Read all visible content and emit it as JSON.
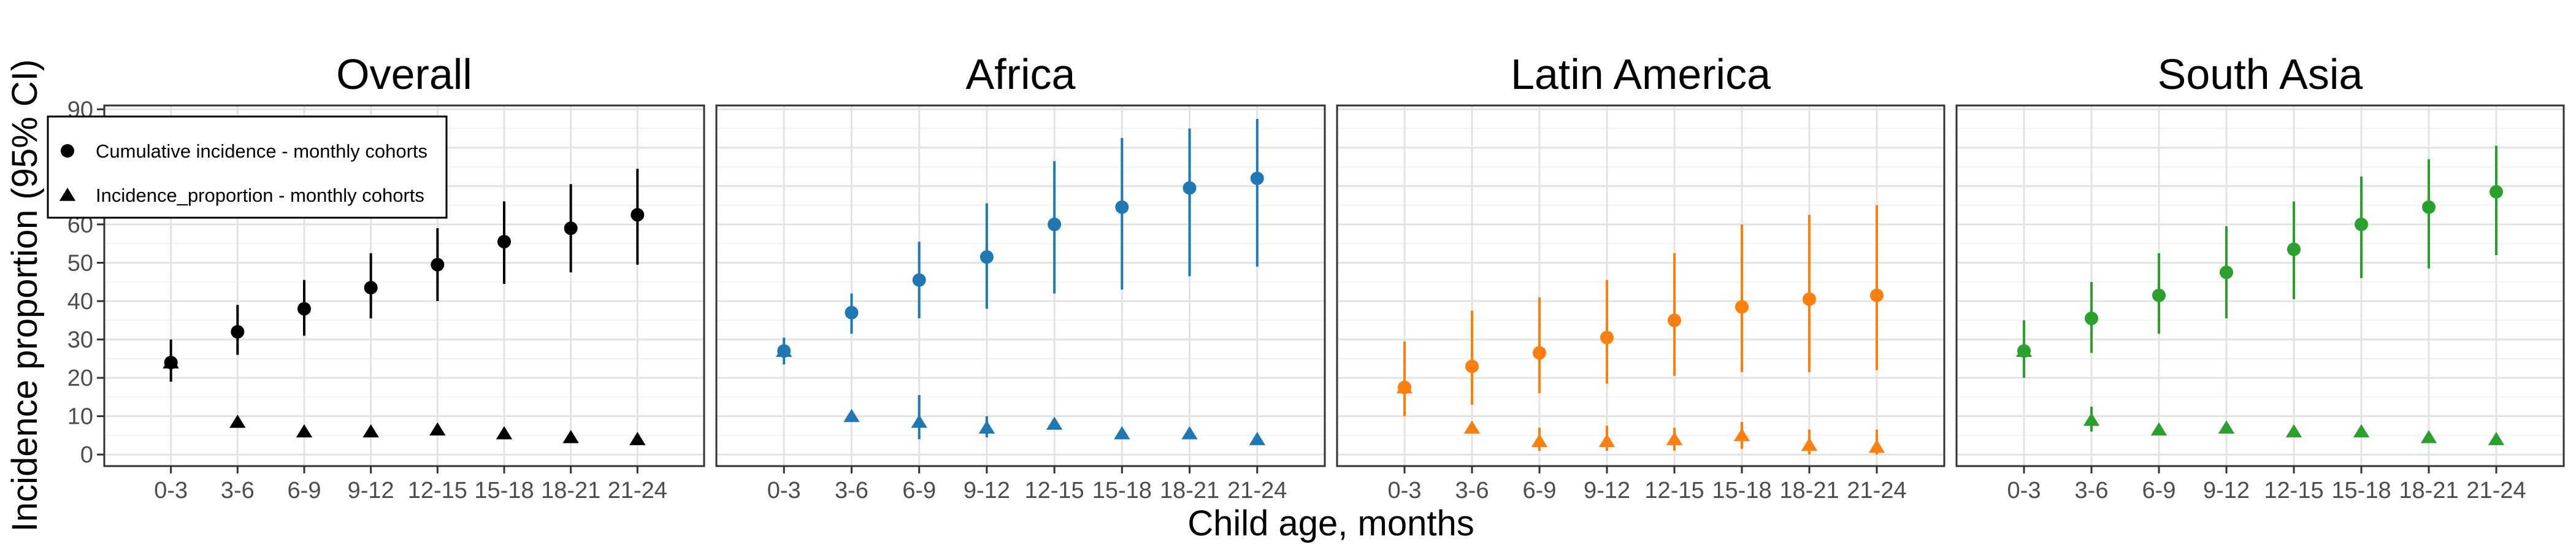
{
  "figure": {
    "ylabel": "Incidence proportion (95% CI)",
    "xlabel": "Child age, months"
  },
  "legend": {
    "items": [
      {
        "label": "Cumulative incidence - monthly cohorts",
        "shape": "circle"
      },
      {
        "label": "Incidence_proportion - monthly cohorts",
        "shape": "triangle"
      }
    ],
    "placement": "inside top-left of first panel"
  },
  "chart_data": [
    {
      "type": "scatter",
      "title": "Overall",
      "color": "#000000",
      "categories": [
        "0-3",
        "3-6",
        "6-9",
        "9-12",
        "12-15",
        "15-18",
        "18-21",
        "21-24"
      ],
      "ylim": [
        -3,
        91
      ],
      "yticks": [
        0,
        10,
        20,
        30,
        40,
        50,
        60,
        70,
        80,
        90
      ],
      "grid": true,
      "series": [
        {
          "name": "Cumulative incidence - monthly cohorts",
          "shape": "circle",
          "values": [
            24,
            32,
            38,
            43.5,
            49.5,
            55.5,
            59,
            62.5
          ],
          "lower": [
            19,
            26,
            31,
            35.5,
            40,
            44.5,
            47.5,
            49.5
          ],
          "upper": [
            30,
            39,
            45.5,
            52.5,
            59,
            66,
            70.5,
            74.5
          ]
        },
        {
          "name": "Incidence_proportion - monthly cohorts",
          "shape": "triangle",
          "values": [
            24,
            8.5,
            6,
            6,
            6.5,
            5.5,
            4.5,
            4
          ],
          "lower": null,
          "upper": null
        }
      ]
    },
    {
      "type": "scatter",
      "title": "Africa",
      "color": "#1f77b4",
      "categories": [
        "0-3",
        "3-6",
        "6-9",
        "9-12",
        "12-15",
        "15-18",
        "18-21",
        "21-24"
      ],
      "ylim": [
        -3,
        91
      ],
      "yticks": [
        0,
        10,
        20,
        30,
        40,
        50,
        60,
        70,
        80,
        90
      ],
      "grid": true,
      "series": [
        {
          "name": "Cumulative incidence - monthly cohorts",
          "shape": "circle",
          "values": [
            27,
            37,
            45.5,
            51.5,
            60,
            64.5,
            69.5,
            72
          ],
          "lower": [
            23.5,
            31.5,
            35.5,
            38,
            42,
            43,
            46.5,
            49
          ],
          "upper": [
            30.5,
            42,
            55.5,
            65.5,
            76.5,
            82.5,
            85,
            87.5
          ]
        },
        {
          "name": "Incidence_proportion - monthly cohorts",
          "shape": "triangle",
          "values": [
            27,
            10,
            8.5,
            7,
            8,
            5.5,
            5.5,
            4
          ],
          "lower": [
            null,
            null,
            4,
            4.5,
            null,
            null,
            null,
            null
          ],
          "upper": [
            null,
            null,
            15.5,
            10,
            null,
            null,
            null,
            null
          ]
        }
      ]
    },
    {
      "type": "scatter",
      "title": "Latin America",
      "color": "#ff7f0e",
      "categories": [
        "0-3",
        "3-6",
        "6-9",
        "9-12",
        "12-15",
        "15-18",
        "18-21",
        "21-24"
      ],
      "ylim": [
        -3,
        91
      ],
      "yticks": [
        0,
        10,
        20,
        30,
        40,
        50,
        60,
        70,
        80,
        90
      ],
      "grid": true,
      "series": [
        {
          "name": "Cumulative incidence - monthly cohorts",
          "shape": "circle",
          "values": [
            17.5,
            23,
            26.5,
            30.5,
            35,
            38.5,
            40.5,
            41.5
          ],
          "lower": [
            10,
            13,
            16,
            18.5,
            20.5,
            21.5,
            21.5,
            22
          ],
          "upper": [
            29.5,
            37.5,
            41,
            45.5,
            52.5,
            60,
            62.5,
            65
          ]
        },
        {
          "name": "Incidence_proportion - monthly cohorts",
          "shape": "triangle",
          "values": [
            17.5,
            7,
            3.5,
            3.5,
            4,
            5,
            2.5,
            2
          ],
          "lower": [
            null,
            null,
            1,
            1,
            1,
            1.5,
            0,
            0
          ],
          "upper": [
            null,
            null,
            7,
            7.5,
            7,
            8.5,
            6.5,
            6.5
          ]
        }
      ]
    },
    {
      "type": "scatter",
      "title": "South Asia",
      "color": "#2ca02c",
      "categories": [
        "0-3",
        "3-6",
        "6-9",
        "9-12",
        "12-15",
        "15-18",
        "18-21",
        "21-24"
      ],
      "ylim": [
        -3,
        91
      ],
      "yticks": [
        0,
        10,
        20,
        30,
        40,
        50,
        60,
        70,
        80,
        90
      ],
      "grid": true,
      "series": [
        {
          "name": "Cumulative incidence - monthly cohorts",
          "shape": "circle",
          "values": [
            27,
            35.5,
            41.5,
            47.5,
            53.5,
            60,
            64.5,
            68.5
          ],
          "lower": [
            20,
            26.5,
            31.5,
            35.5,
            40.5,
            46,
            48.5,
            52
          ],
          "upper": [
            35,
            45,
            52.5,
            59.5,
            66,
            72.5,
            77,
            80.5
          ]
        },
        {
          "name": "Incidence_proportion - monthly cohorts",
          "shape": "triangle",
          "values": [
            27,
            9,
            6.5,
            7,
            6,
            6,
            4.5,
            4
          ],
          "lower": [
            null,
            6,
            null,
            null,
            null,
            null,
            null,
            null
          ],
          "upper": [
            null,
            12.5,
            null,
            null,
            null,
            null,
            null,
            null
          ]
        }
      ]
    }
  ]
}
